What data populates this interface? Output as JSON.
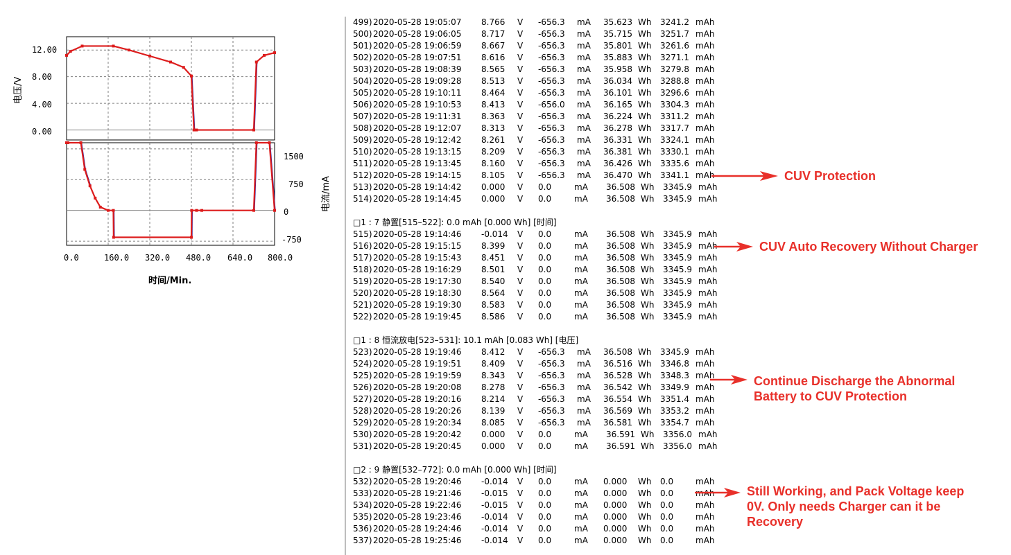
{
  "voltage_chart": {
    "ylabel": "电压/V",
    "yticks": [
      "12.00",
      "8.00",
      "4.00",
      "0.00"
    ]
  },
  "current_chart": {
    "ylabel": "电流/mA",
    "yticks": [
      "1500",
      "750",
      "0",
      "-750"
    ],
    "xticks": [
      "0.0",
      "160.0",
      "320.0",
      "480.0",
      "640.0",
      "800.0"
    ],
    "xlabel": "时间/Min."
  },
  "chart_data": [
    {
      "type": "line",
      "ylabel": "电压/V",
      "ylim": [
        -1.5,
        14
      ],
      "xlim": [
        0,
        800
      ],
      "grid": true,
      "series": [
        {
          "x": [
            0,
            15,
            60,
            180,
            240,
            320,
            400,
            450,
            480,
            490,
            500,
            720,
            730,
            760,
            800
          ],
          "y": [
            11.2,
            11.8,
            12.6,
            12.6,
            12.0,
            11.1,
            10.2,
            9.4,
            8.1,
            0.0,
            0.0,
            0.0,
            10.2,
            11.2,
            11.6
          ]
        }
      ]
    },
    {
      "type": "line",
      "ylabel": "电流/mA",
      "xlabel": "时间/Min.",
      "ylim": [
        -850,
        1650
      ],
      "xlim": [
        0,
        800
      ],
      "grid": true,
      "series": [
        {
          "x": [
            0,
            5,
            55,
            70,
            90,
            110,
            130,
            160,
            180,
            181,
            480,
            481,
            500,
            520,
            720,
            730,
            780,
            800
          ],
          "y": [
            1650,
            1650,
            1650,
            1000,
            600,
            300,
            80,
            0,
            0,
            -656,
            -656,
            0,
            0,
            0,
            0,
            1650,
            1650,
            0
          ]
        }
      ]
    }
  ],
  "log_rows": [
    [
      "499)",
      "2020-05-28 19:05:07",
      "8.766",
      "V",
      "-656.3",
      "mA",
      "35.623",
      "Wh",
      "3241.2",
      "mAh"
    ],
    [
      "500)",
      "2020-05-28 19:06:05",
      "8.717",
      "V",
      "-656.3",
      "mA",
      "35.715",
      "Wh",
      "3251.7",
      "mAh"
    ],
    [
      "501)",
      "2020-05-28 19:06:59",
      "8.667",
      "V",
      "-656.3",
      "mA",
      "35.801",
      "Wh",
      "3261.6",
      "mAh"
    ],
    [
      "502)",
      "2020-05-28 19:07:51",
      "8.616",
      "V",
      "-656.3",
      "mA",
      "35.883",
      "Wh",
      "3271.1",
      "mAh"
    ],
    [
      "503)",
      "2020-05-28 19:08:39",
      "8.565",
      "V",
      "-656.3",
      "mA",
      "35.958",
      "Wh",
      "3279.8",
      "mAh"
    ],
    [
      "504)",
      "2020-05-28 19:09:28",
      "8.513",
      "V",
      "-656.3",
      "mA",
      "36.034",
      "Wh",
      "3288.8",
      "mAh"
    ],
    [
      "505)",
      "2020-05-28 19:10:11",
      "8.464",
      "V",
      "-656.3",
      "mA",
      "36.101",
      "Wh",
      "3296.6",
      "mAh"
    ],
    [
      "506)",
      "2020-05-28 19:10:53",
      "8.413",
      "V",
      "-656.0",
      "mA",
      "36.165",
      "Wh",
      "3304.3",
      "mAh"
    ],
    [
      "507)",
      "2020-05-28 19:11:31",
      "8.363",
      "V",
      "-656.3",
      "mA",
      "36.224",
      "Wh",
      "3311.2",
      "mAh"
    ],
    [
      "508)",
      "2020-05-28 19:12:07",
      "8.313",
      "V",
      "-656.3",
      "mA",
      "36.278",
      "Wh",
      "3317.7",
      "mAh"
    ],
    [
      "509)",
      "2020-05-28 19:12:42",
      "8.261",
      "V",
      "-656.3",
      "mA",
      "36.331",
      "Wh",
      "3324.1",
      "mAh"
    ],
    [
      "510)",
      "2020-05-28 19:13:15",
      "8.209",
      "V",
      "-656.3",
      "mA",
      "36.381",
      "Wh",
      "3330.1",
      "mAh"
    ],
    [
      "511)",
      "2020-05-28 19:13:45",
      "8.160",
      "V",
      "-656.3",
      "mA",
      "36.426",
      "Wh",
      "3335.6",
      "mAh"
    ],
    [
      "512)",
      "2020-05-28 19:14:15",
      "8.105",
      "V",
      "-656.3",
      "mA",
      "36.470",
      "Wh",
      "3341.1",
      "mAh"
    ],
    [
      "513)",
      "2020-05-28 19:14:42",
      "0.000",
      "V",
      "0.0",
      "mA",
      "36.508",
      "Wh",
      "3345.9",
      "mAh"
    ],
    [
      "514)",
      "2020-05-28 19:14:45",
      "0.000",
      "V",
      "0.0",
      "mA",
      "36.508",
      "Wh",
      "3345.9",
      "mAh"
    ],
    null,
    "□1 : 7 静置[515–522]:  0.0   mAh  [0.000 Wh]  [时间]",
    [
      "515)",
      "2020-05-28 19:14:46",
      "-0.014",
      "V",
      "0.0",
      "mA",
      "36.508",
      "Wh",
      "3345.9",
      "mAh"
    ],
    [
      "516)",
      "2020-05-28 19:15:15",
      "8.399",
      "V",
      "0.0",
      "mA",
      "36.508",
      "Wh",
      "3345.9",
      "mAh"
    ],
    [
      "517)",
      "2020-05-28 19:15:43",
      "8.451",
      "V",
      "0.0",
      "mA",
      "36.508",
      "Wh",
      "3345.9",
      "mAh"
    ],
    [
      "518)",
      "2020-05-28 19:16:29",
      "8.501",
      "V",
      "0.0",
      "mA",
      "36.508",
      "Wh",
      "3345.9",
      "mAh"
    ],
    [
      "519)",
      "2020-05-28 19:17:30",
      "8.540",
      "V",
      "0.0",
      "mA",
      "36.508",
      "Wh",
      "3345.9",
      "mAh"
    ],
    [
      "520)",
      "2020-05-28 19:18:30",
      "8.564",
      "V",
      "0.0",
      "mA",
      "36.508",
      "Wh",
      "3345.9",
      "mAh"
    ],
    [
      "521)",
      "2020-05-28 19:19:30",
      "8.583",
      "V",
      "0.0",
      "mA",
      "36.508",
      "Wh",
      "3345.9",
      "mAh"
    ],
    [
      "522)",
      "2020-05-28 19:19:45",
      "8.586",
      "V",
      "0.0",
      "mA",
      "36.508",
      "Wh",
      "3345.9",
      "mAh"
    ],
    null,
    "□1 : 8 恒流放电[523–531]:  10.1   mAh  [0.083 Wh]  [电压]",
    [
      "523)",
      "2020-05-28 19:19:46",
      "8.412",
      "V",
      "-656.3",
      "mA",
      "36.508",
      "Wh",
      "3345.9",
      "mAh"
    ],
    [
      "524)",
      "2020-05-28 19:19:51",
      "8.409",
      "V",
      "-656.3",
      "mA",
      "36.516",
      "Wh",
      "3346.8",
      "mAh"
    ],
    [
      "525)",
      "2020-05-28 19:19:59",
      "8.343",
      "V",
      "-656.3",
      "mA",
      "36.528",
      "Wh",
      "3348.3",
      "mAh"
    ],
    [
      "526)",
      "2020-05-28 19:20:08",
      "8.278",
      "V",
      "-656.3",
      "mA",
      "36.542",
      "Wh",
      "3349.9",
      "mAh"
    ],
    [
      "527)",
      "2020-05-28 19:20:16",
      "8.214",
      "V",
      "-656.3",
      "mA",
      "36.554",
      "Wh",
      "3351.4",
      "mAh"
    ],
    [
      "528)",
      "2020-05-28 19:20:26",
      "8.139",
      "V",
      "-656.3",
      "mA",
      "36.569",
      "Wh",
      "3353.2",
      "mAh"
    ],
    [
      "529)",
      "2020-05-28 19:20:34",
      "8.085",
      "V",
      "-656.3",
      "mA",
      "36.581",
      "Wh",
      "3354.7",
      "mAh"
    ],
    [
      "530)",
      "2020-05-28 19:20:42",
      "0.000",
      "V",
      "0.0",
      "mA",
      "36.591",
      "Wh",
      "3356.0",
      "mAh"
    ],
    [
      "531)",
      "2020-05-28 19:20:45",
      "0.000",
      "V",
      "0.0",
      "mA",
      "36.591",
      "Wh",
      "3356.0",
      "mAh"
    ],
    null,
    "□2 : 9 静置[532–772]:  0.0   mAh  [0.000 Wh]  [时间]",
    [
      "532)",
      "2020-05-28 19:20:46",
      "-0.014",
      "V",
      "0.0",
      "mA",
      "0.000",
      "Wh",
      "0.0",
      "mAh"
    ],
    [
      "533)",
      "2020-05-28 19:21:46",
      "-0.015",
      "V",
      "0.0",
      "mA",
      "0.000",
      "Wh",
      "0.0",
      "mAh"
    ],
    [
      "534)",
      "2020-05-28 19:22:46",
      "-0.015",
      "V",
      "0.0",
      "mA",
      "0.000",
      "Wh",
      "0.0",
      "mAh"
    ],
    [
      "535)",
      "2020-05-28 19:23:46",
      "-0.014",
      "V",
      "0.0",
      "mA",
      "0.000",
      "Wh",
      "0.0",
      "mAh"
    ],
    [
      "536)",
      "2020-05-28 19:24:46",
      "-0.014",
      "V",
      "0.0",
      "mA",
      "0.000",
      "Wh",
      "0.0",
      "mAh"
    ],
    [
      "537)",
      "2020-05-28 19:25:46",
      "-0.014",
      "V",
      "0.0",
      "mA",
      "0.000",
      "Wh",
      "0.0",
      "mAh"
    ]
  ],
  "annotations": {
    "cuv_protection": "CUV Protection",
    "cuv_recovery": "CUV Auto Recovery Without Charger",
    "continue_line1": "Continue Discharge the Abnormal",
    "continue_line2": "Battery to CUV Protection",
    "still_line1": "Still Working, and Pack Voltage keep",
    "still_line2": "0V. Only needs Charger can it be",
    "still_line3": "Recovery"
  },
  "colors": {
    "curve": "#dd1c1c",
    "drop_line": "#1a1aa8",
    "grid": "#808080",
    "annotation": "#e8302a"
  }
}
